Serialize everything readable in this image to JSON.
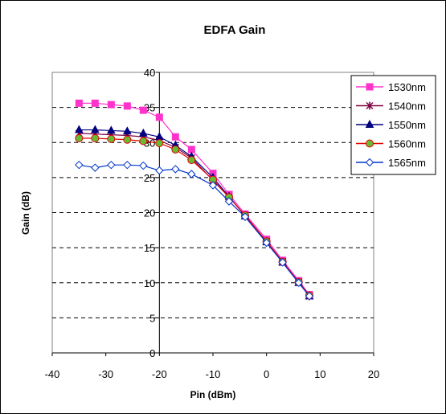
{
  "chart_data": {
    "type": "line",
    "title": "EDFA Gain",
    "xlabel": "Pin (dBm)",
    "ylabel": "Gain (dB)",
    "xlim": [
      -40,
      20
    ],
    "ylim": [
      0,
      40
    ],
    "xticks": [
      -40,
      -30,
      -20,
      -10,
      0,
      10,
      20
    ],
    "yticks": [
      0,
      5,
      10,
      15,
      20,
      25,
      30,
      35,
      40
    ],
    "grid": "horizontal dashed",
    "legend_position": "right",
    "x": [
      -35,
      -32,
      -29,
      -26,
      -23,
      -20,
      -17,
      -14,
      -10,
      -7,
      -4,
      0,
      3,
      6,
      8
    ],
    "series": [
      {
        "name": "1530nm",
        "color": "#ff33cc",
        "marker": "square",
        "values": [
          35.6,
          35.6,
          35.4,
          35.2,
          34.6,
          33.6,
          30.8,
          29.0,
          25.6,
          22.6,
          19.8,
          16.2,
          13.2,
          10.3,
          8.3
        ]
      },
      {
        "name": "1540nm",
        "color": "#800040",
        "marker": "star",
        "values": [
          31.3,
          31.2,
          31.1,
          31.0,
          30.8,
          30.3,
          29.3,
          27.8,
          24.6,
          22.2,
          19.6,
          15.9,
          13.0,
          10.1,
          8.1
        ]
      },
      {
        "name": "1550nm",
        "color": "#000080",
        "marker": "triangle",
        "values": [
          31.8,
          31.8,
          31.7,
          31.6,
          31.3,
          30.8,
          29.6,
          28.0,
          25.0,
          22.3,
          19.5,
          15.8,
          12.9,
          10.0,
          8.1
        ]
      },
      {
        "name": "1560nm",
        "color": "#e60000",
        "marker": "circle",
        "values": [
          30.6,
          30.6,
          30.5,
          30.4,
          30.2,
          29.9,
          29.0,
          27.5,
          24.7,
          22.2,
          19.6,
          15.9,
          13.0,
          10.1,
          8.2
        ]
      },
      {
        "name": "1565nm",
        "color": "#0033cc",
        "marker": "diamond",
        "values": [
          26.8,
          26.4,
          26.8,
          26.8,
          26.7,
          26.0,
          26.2,
          25.5,
          23.9,
          21.6,
          19.4,
          15.7,
          12.9,
          10.0,
          8.1
        ]
      }
    ]
  }
}
